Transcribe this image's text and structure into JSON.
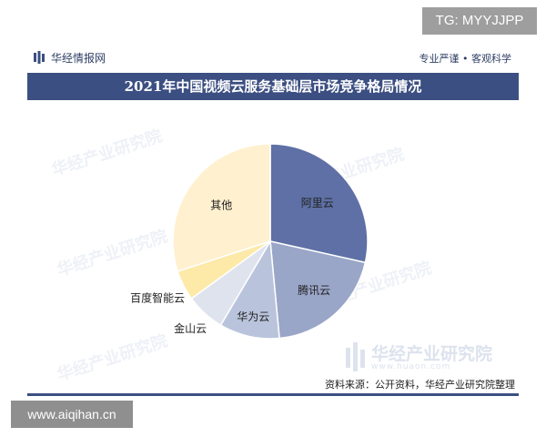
{
  "overlay": {
    "tg_tag": "TG: MYYJJPP",
    "site_tag": "www.aiqihan.cn"
  },
  "header": {
    "brand": "华经情报网",
    "slogan": "专业严谨 • 客观科学"
  },
  "watermark": {
    "text": "华经产业研究院",
    "corner_name": "华经产业研究院",
    "corner_url": "www.huaon.com"
  },
  "footer": {
    "source": "资料来源：公开资料，华经产业研究院整理"
  },
  "colors": {
    "header_bar": "#3c4f82",
    "brand_text": "#2f3e64"
  },
  "chart_data": {
    "type": "pie",
    "title": "2021年中国视频云服务基础层市场竞争格局情况",
    "slices": [
      {
        "label": "阿里云",
        "value": 28.5,
        "color": "#5e70a5"
      },
      {
        "label": "腾讯云",
        "value": 20.0,
        "color": "#9aa6c8"
      },
      {
        "label": "华为云",
        "value": 10.0,
        "color": "#b9c4dc"
      },
      {
        "label": "金山云",
        "value": 6.5,
        "color": "#dfe3ed"
      },
      {
        "label": "百度智能云",
        "value": 5.0,
        "color": "#fde9a8"
      },
      {
        "label": "其他",
        "value": 30.0,
        "color": "#fff1cf"
      }
    ],
    "start": "12 o'clock",
    "direction": "clockwise",
    "legend": "none"
  }
}
